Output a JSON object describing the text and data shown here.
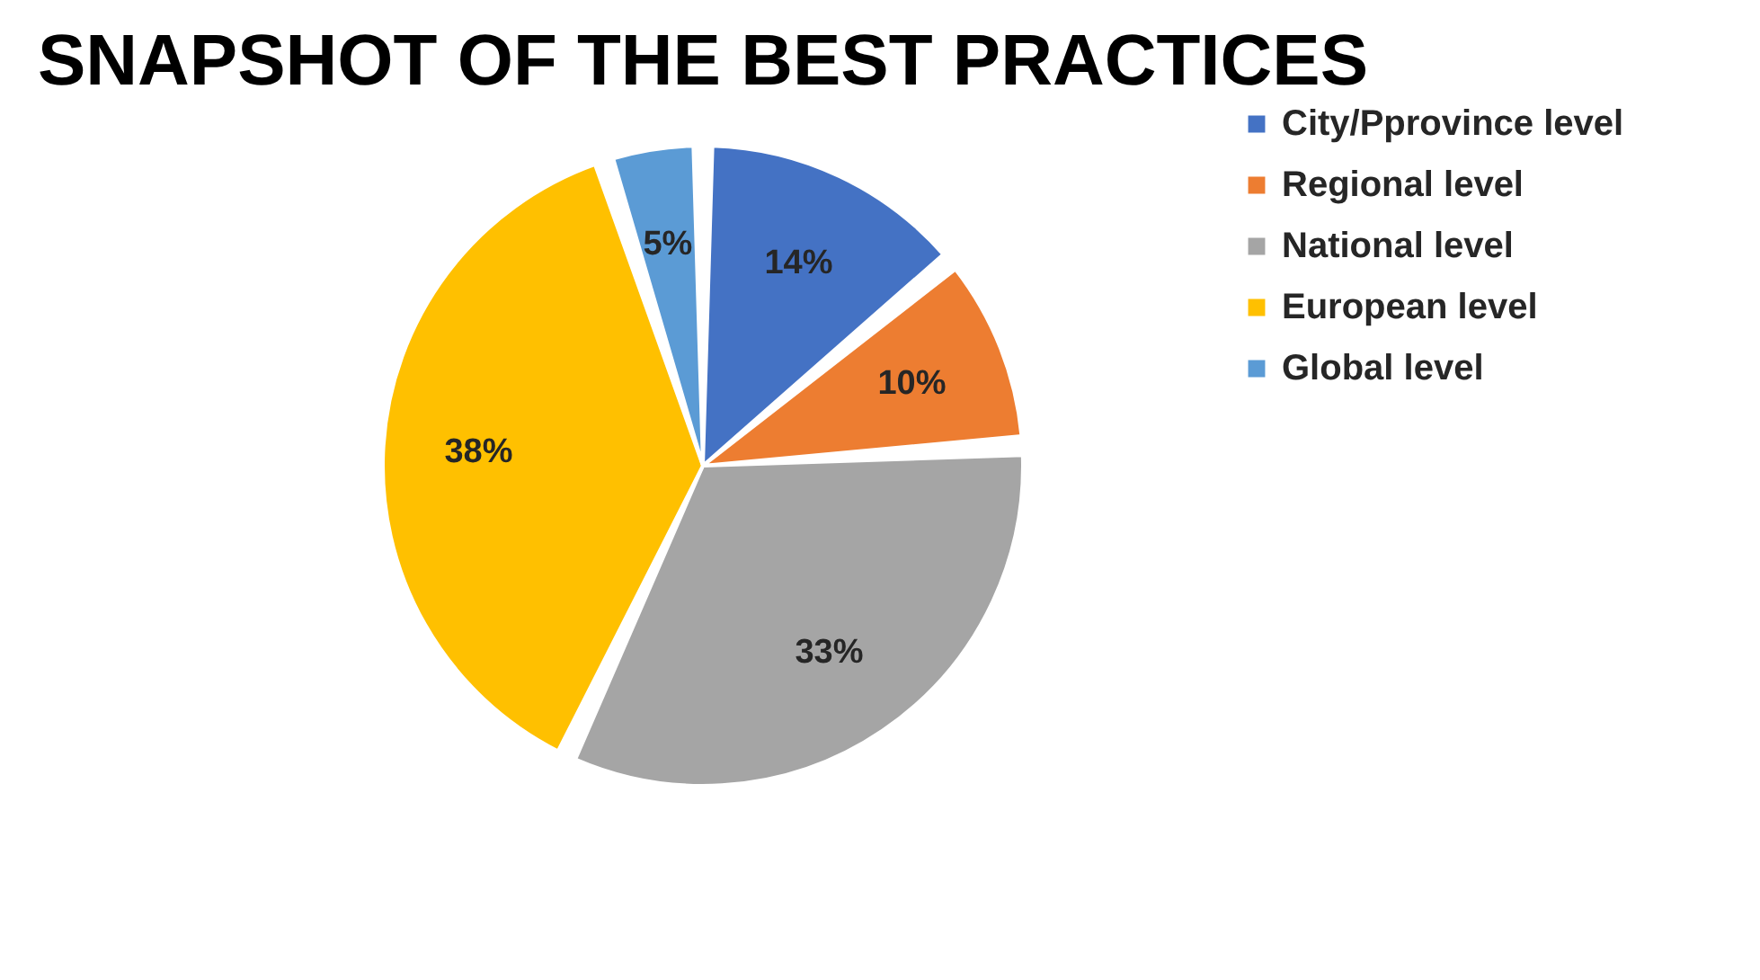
{
  "chart_data": {
    "type": "pie",
    "title": "SNAPSHOT OF THE BEST PRACTICES",
    "categories": [
      "City/Pprovince level",
      "Regional level",
      "National level",
      "European level",
      "Global level"
    ],
    "values": [
      14,
      10,
      33,
      38,
      5
    ],
    "colors": [
      "#4472c4",
      "#ed7d31",
      "#a5a5a5",
      "#ffc000",
      "#5b9bd5"
    ],
    "value_labels": [
      "14%",
      "10%",
      "33%",
      "38%",
      "5%"
    ],
    "legend": "right"
  }
}
